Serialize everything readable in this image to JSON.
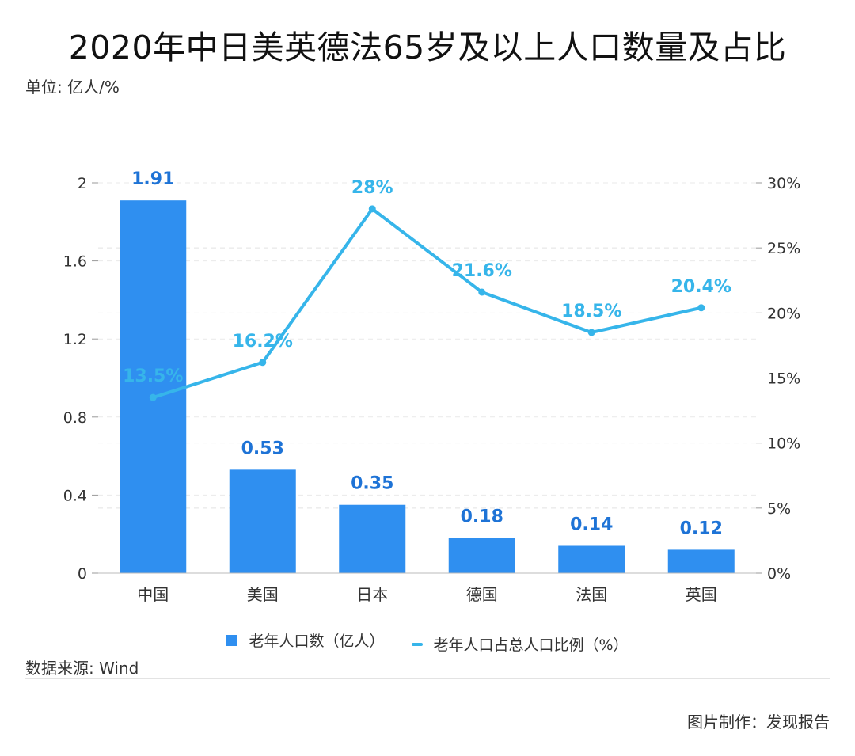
{
  "title": "2020年中日美英德法65岁及以上人口数量及占比",
  "unit_label": "单位: 亿人/%",
  "source_label": "数据来源: Wind",
  "credit_label": "图片制作：发现报告",
  "chart_data": {
    "type": "bar+line",
    "categories": [
      "中国",
      "美国",
      "日本",
      "德国",
      "法国",
      "英国"
    ],
    "series": [
      {
        "name": "老年人口数（亿人）",
        "type": "bar",
        "axis": "left",
        "values": [
          1.91,
          0.53,
          0.35,
          0.18,
          0.14,
          0.12
        ],
        "labels": [
          "1.91",
          "0.53",
          "0.35",
          "0.18",
          "0.14",
          "0.12"
        ],
        "color": "#2f8ff0"
      },
      {
        "name": "老年人口占总人口比例（%）",
        "type": "line",
        "axis": "right",
        "values": [
          13.5,
          16.2,
          28,
          21.6,
          18.5,
          20.4
        ],
        "labels": [
          "13.5%",
          "16.2%",
          "28%",
          "21.6%",
          "18.5%",
          "20.4%"
        ],
        "color": "#36b5ea"
      }
    ],
    "left_axis": {
      "min": 0,
      "max": 2,
      "ticks": [
        0,
        0.4,
        0.8,
        1.2,
        1.6,
        2
      ],
      "tick_labels": [
        "0",
        "0.4",
        "0.8",
        "1.2",
        "1.6",
        "2"
      ]
    },
    "right_axis": {
      "min": 0,
      "max": 30,
      "ticks": [
        0,
        5,
        10,
        15,
        20,
        25,
        30
      ],
      "tick_labels": [
        "0%",
        "5%",
        "10%",
        "15%",
        "20%",
        "25%",
        "30%"
      ]
    },
    "grid": true,
    "legend_position": "bottom"
  }
}
